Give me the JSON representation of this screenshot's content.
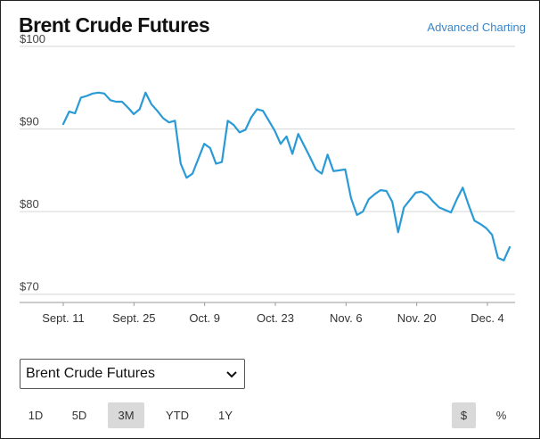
{
  "title": "Brent Crude Futures",
  "advanced_link": "Advanced Charting",
  "selector": {
    "selected": "Brent Crude Futures"
  },
  "ranges": [
    {
      "label": "1D",
      "active": false
    },
    {
      "label": "5D",
      "active": false
    },
    {
      "label": "3M",
      "active": true
    },
    {
      "label": "YTD",
      "active": false
    },
    {
      "label": "1Y",
      "active": false
    }
  ],
  "units": [
    {
      "label": "$",
      "active": true
    },
    {
      "label": "%",
      "active": false
    }
  ],
  "colors": {
    "line": "#2a9ad6",
    "grid": "#d6d6d6",
    "active_bg": "#d9d9d9",
    "link": "#3a86c8"
  },
  "chart_data": {
    "type": "line",
    "title": "Brent Crude Futures",
    "ylim": [
      69,
      100
    ],
    "y_ticks": [
      {
        "value": 100,
        "label": "$100"
      },
      {
        "value": 90,
        "label": "$90"
      },
      {
        "value": 80,
        "label": "$80"
      },
      {
        "value": 70,
        "label": "$70"
      }
    ],
    "x_ticks": [
      "Sept. 11",
      "Sept. 25",
      "Oct. 9",
      "Oct. 23",
      "Nov. 6",
      "Nov. 20",
      "Dec. 4"
    ],
    "grid": true,
    "series": [
      {
        "values": [
          90.6,
          92.1,
          91.9,
          93.8,
          94.0,
          94.3,
          94.4,
          94.3,
          93.5,
          93.3,
          93.3,
          92.6,
          91.8,
          92.4,
          94.4,
          93.0,
          92.2,
          91.3,
          90.8,
          91.0,
          85.8,
          84.1,
          84.6,
          86.4,
          88.2,
          87.7,
          85.8,
          86.0,
          91.0,
          90.5,
          89.6,
          89.9,
          91.4,
          92.4,
          92.2,
          91.0,
          89.8,
          88.2,
          89.1,
          87.0,
          89.4,
          88.0,
          86.6,
          85.1,
          84.6,
          86.9,
          84.9,
          85.0,
          85.1,
          81.6,
          79.6,
          80.0,
          81.5,
          82.1,
          82.6,
          82.5,
          81.2,
          77.5,
          80.5,
          81.4,
          82.3,
          82.4,
          82.0,
          81.2,
          80.5,
          80.2,
          79.9,
          81.5,
          82.9,
          80.8,
          78.9,
          78.5,
          78.0,
          77.2,
          74.4,
          74.1,
          75.7
        ]
      }
    ]
  }
}
